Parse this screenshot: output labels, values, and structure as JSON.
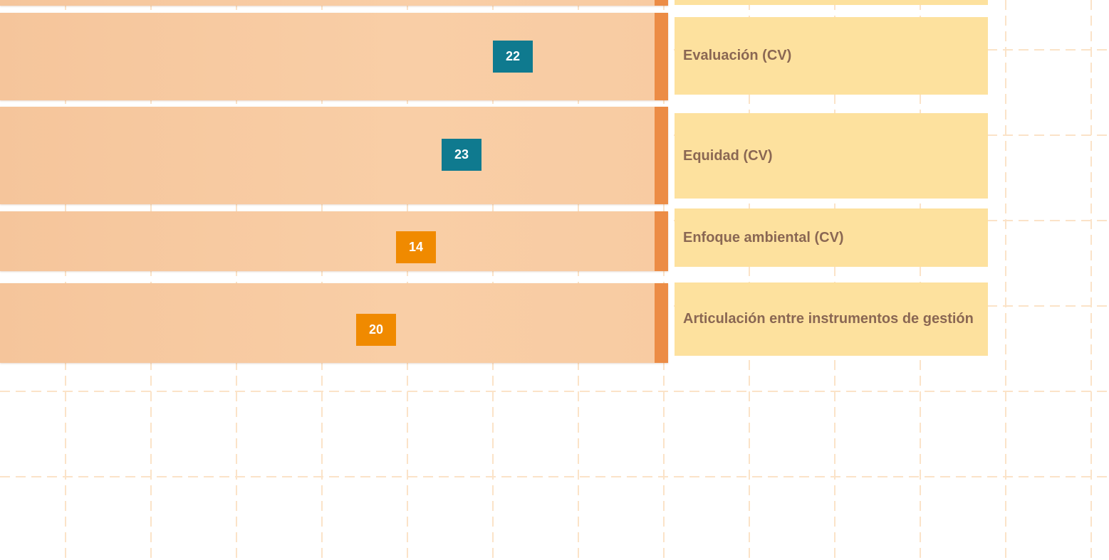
{
  "rows": [
    {
      "label": "Evaluación (CV)",
      "value": 22,
      "badge_color": "#0f7a8f"
    },
    {
      "label": "Equidad (CV)",
      "value": 23,
      "badge_color": "#0f7a8f"
    },
    {
      "label": "Enfoque ambiental (CV)",
      "value": 14,
      "badge_color": "#f08a00"
    },
    {
      "label": "Articulación entre instrumentos de gestión",
      "value": 20,
      "badge_color": "#f08a00"
    }
  ]
}
